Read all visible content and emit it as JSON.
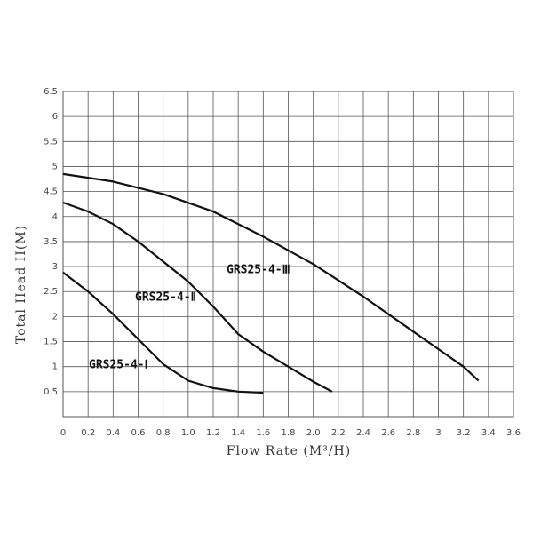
{
  "chart_data": {
    "type": "line",
    "x_label": "Flow Rate (M³/H)",
    "y_label": "Total Head H(M)",
    "xlim": [
      0,
      3.6
    ],
    "xticks": [
      0,
      0.2,
      0.4,
      0.6,
      0.8,
      {
        "value": 1,
        "label": "1.0"
      },
      1.2,
      1.4,
      1.6,
      1.8,
      {
        "value": 2,
        "label": "2.0"
      },
      2.2,
      2.4,
      2.6,
      2.8,
      3,
      3.2,
      3.4,
      3.6
    ],
    "ylim": [
      0,
      6.5
    ],
    "yticks": [
      0.5,
      1,
      1.5,
      2,
      2.5,
      3,
      3.5,
      4,
      4.5,
      5,
      5.5,
      6,
      6.5
    ],
    "grid": true,
    "series": [
      {
        "name": "GRS25-4-Ⅰ",
        "color": "#111111",
        "x": [
          0,
          0.2,
          0.4,
          0.6,
          0.8,
          1.0,
          1.2,
          1.4,
          1.6
        ],
        "values": [
          2.88,
          2.5,
          2.05,
          1.55,
          1.05,
          0.72,
          0.57,
          0.5,
          0.48
        ]
      },
      {
        "name": "GRS25-4-Ⅱ",
        "color": "#111111",
        "x": [
          0,
          0.2,
          0.4,
          0.6,
          0.8,
          1.0,
          1.2,
          1.4,
          1.6,
          1.8,
          2.0,
          2.15
        ],
        "values": [
          4.28,
          4.1,
          3.85,
          3.5,
          3.1,
          2.7,
          2.2,
          1.65,
          1.3,
          1.0,
          0.7,
          0.5
        ]
      },
      {
        "name": "GRS25-4-Ⅲ",
        "color": "#111111",
        "x": [
          0,
          0.4,
          0.8,
          1.2,
          1.6,
          2.0,
          2.4,
          2.8,
          3.2,
          3.32
        ],
        "values": [
          4.85,
          4.7,
          4.45,
          4.1,
          3.6,
          3.05,
          2.4,
          1.7,
          1.0,
          0.72
        ]
      }
    ]
  }
}
